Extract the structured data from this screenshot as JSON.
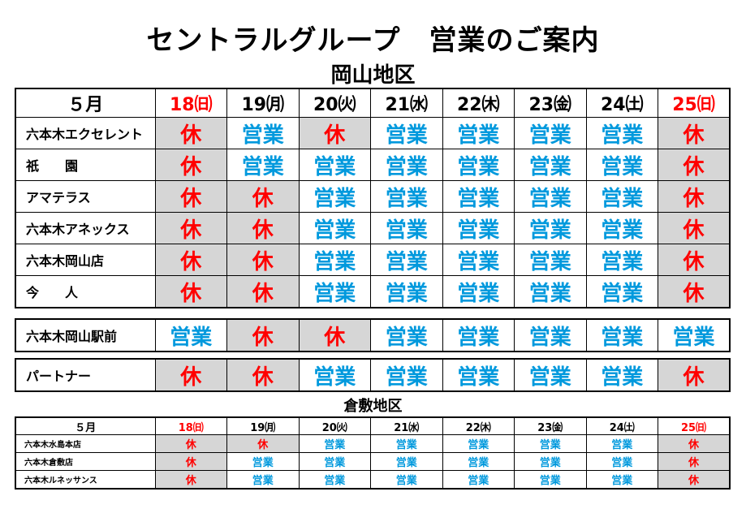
{
  "title": "セントラルグループ　営業のご案内",
  "okayama": {
    "region_title": "岡山地区",
    "month": "５月",
    "days": [
      {
        "label": "18㈰",
        "sunday": true
      },
      {
        "label": "19㈪",
        "sunday": false
      },
      {
        "label": "20㈫",
        "sunday": false
      },
      {
        "label": "21㈬",
        "sunday": false
      },
      {
        "label": "22㈭",
        "sunday": false
      },
      {
        "label": "23㈮",
        "sunday": false
      },
      {
        "label": "24㈯",
        "sunday": false
      },
      {
        "label": "25㈰",
        "sunday": true
      }
    ],
    "group1": [
      {
        "name": "六本木エクセレント",
        "status": [
          "休",
          "営業",
          "休",
          "営業",
          "営業",
          "営業",
          "営業",
          "休"
        ]
      },
      {
        "name": "祇　　園",
        "status": [
          "休",
          "営業",
          "営業",
          "営業",
          "営業",
          "営業",
          "営業",
          "休"
        ]
      },
      {
        "name": "アマテラス",
        "status": [
          "休",
          "休",
          "営業",
          "営業",
          "営業",
          "営業",
          "営業",
          "休"
        ]
      },
      {
        "name": "六本木アネックス",
        "status": [
          "休",
          "休",
          "営業",
          "営業",
          "営業",
          "営業",
          "営業",
          "休"
        ]
      },
      {
        "name": "六本木岡山店",
        "status": [
          "休",
          "休",
          "営業",
          "営業",
          "営業",
          "営業",
          "営業",
          "休"
        ]
      },
      {
        "name": "今　　人",
        "status": [
          "休",
          "休",
          "営業",
          "営業",
          "営業",
          "営業",
          "営業",
          "休"
        ]
      }
    ],
    "group2": [
      {
        "name": "六本木岡山駅前",
        "status": [
          "営業",
          "休",
          "休",
          "営業",
          "営業",
          "営業",
          "営業",
          "営業"
        ]
      }
    ],
    "group3": [
      {
        "name": "パートナー",
        "status": [
          "休",
          "休",
          "営業",
          "営業",
          "営業",
          "営業",
          "営業",
          "休"
        ]
      }
    ]
  },
  "kurashiki": {
    "region_title": "倉敷地区",
    "month": "５月",
    "days": [
      {
        "label": "18㈰",
        "sunday": true
      },
      {
        "label": "19㈪",
        "sunday": false
      },
      {
        "label": "20㈫",
        "sunday": false
      },
      {
        "label": "21㈬",
        "sunday": false
      },
      {
        "label": "22㈭",
        "sunday": false
      },
      {
        "label": "23㈮",
        "sunday": false
      },
      {
        "label": "24㈯",
        "sunday": false
      },
      {
        "label": "25㈰",
        "sunday": true
      }
    ],
    "rows": [
      {
        "name": "六本木水島本店",
        "status": [
          "休",
          "休",
          "営業",
          "営業",
          "営業",
          "営業",
          "営業",
          "休"
        ]
      },
      {
        "name": "六本木倉敷店",
        "status": [
          "休",
          "営業",
          "営業",
          "営業",
          "営業",
          "営業",
          "営業",
          "休"
        ]
      },
      {
        "name": "六本木ルネッサンス",
        "status": [
          "休",
          "営業",
          "営業",
          "営業",
          "営業",
          "営業",
          "営業",
          "休"
        ]
      }
    ]
  },
  "colors": {
    "open": "#0099dd",
    "closed": "#ff0000",
    "closed_bg": "#d6d6d6"
  }
}
